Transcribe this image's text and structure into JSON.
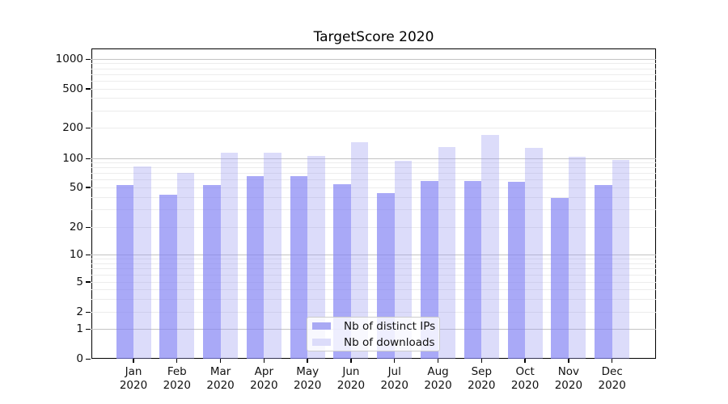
{
  "title": "TargetScore 2020",
  "chart_data": {
    "type": "bar",
    "title": "TargetScore 2020",
    "categories": [
      "Jan 2020",
      "Feb 2020",
      "Mar 2020",
      "Apr 2020",
      "May 2020",
      "Jun 2020",
      "Jul 2020",
      "Aug 2020",
      "Sep 2020",
      "Oct 2020",
      "Nov 2020",
      "Dec 2020"
    ],
    "series": [
      {
        "name": "Nb of distinct IPs",
        "color": "rgba(132,132,244,0.7)",
        "legend_color": "#a9a9f4",
        "values": [
          53,
          42,
          53,
          66,
          66,
          54,
          44,
          58,
          58,
          57,
          39,
          53
        ]
      },
      {
        "name": "Nb of downloads",
        "color": "rgba(155,155,241,0.35)",
        "legend_color": "#dcdcfa",
        "values": [
          84,
          71,
          115,
          114,
          107,
          145,
          96,
          131,
          172,
          128,
          105,
          97
        ]
      }
    ],
    "yscale": "symlog",
    "ylim": [
      0,
      1400
    ],
    "yticks": [
      0,
      1,
      2,
      5,
      10,
      20,
      50,
      100,
      200,
      500,
      1000
    ],
    "ytick_labels": [
      "0",
      "1",
      "2",
      "5",
      "10",
      "20",
      "50",
      "100",
      "200",
      "500",
      "1000"
    ],
    "grid": true,
    "legend_position": "lower center"
  }
}
